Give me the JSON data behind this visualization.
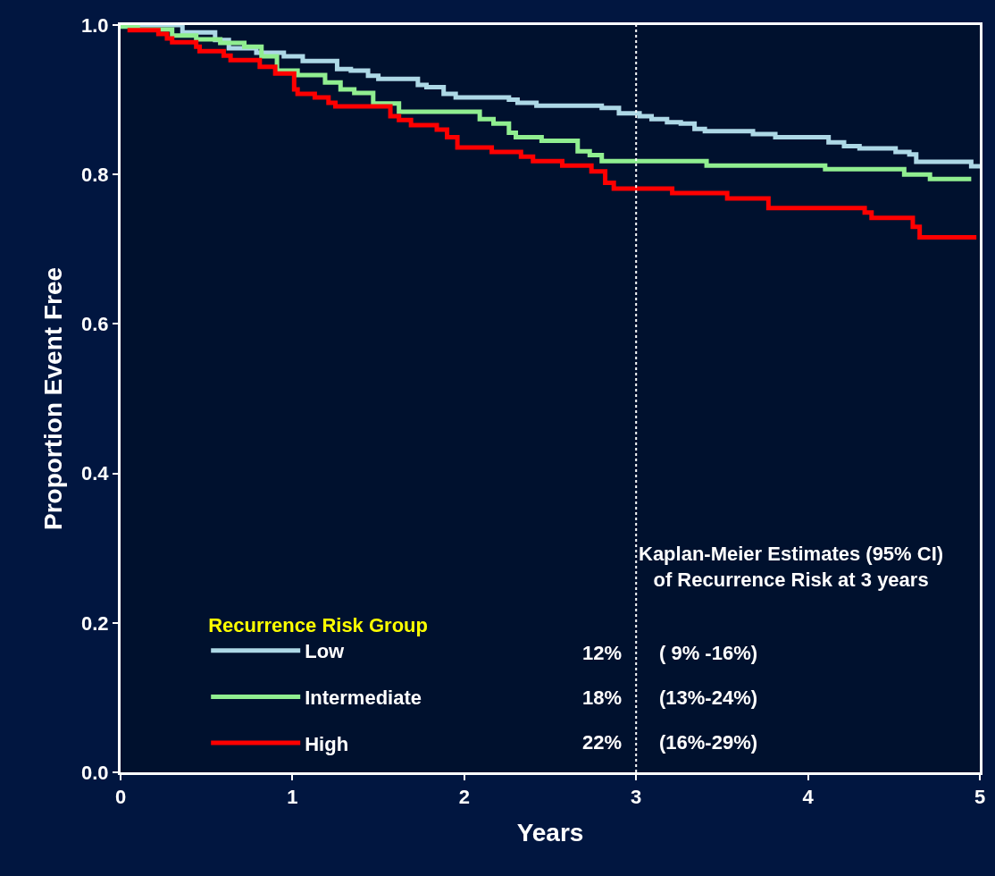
{
  "chart_data": {
    "type": "step",
    "xlabel": "Years",
    "ylabel": "Proportion Event Free",
    "legend_title": "Recurrence Risk Group",
    "legend": "bottom left",
    "grid": false,
    "marker": "none",
    "line_style": "solid",
    "xlim": [
      0,
      5
    ],
    "xticks": [
      0,
      1,
      2,
      3,
      4,
      5
    ],
    "ylim": [
      0,
      1
    ],
    "yticks": [
      {
        "value": 0,
        "label": "0.0"
      },
      0.2,
      0.4,
      0.6,
      0.8,
      {
        "value": 1,
        "label": "1.0"
      }
    ],
    "ref_lines": [
      {
        "axis": "x",
        "value": 3,
        "color": "#ffffff",
        "line_style": "dotted"
      }
    ],
    "annotations": [
      "Kaplan-Meier Estimates (95% CI)\nof Recurrence Risk at 3 years",
      "12%",
      "( 9% -16%)",
      "18%",
      "(13%-24%)",
      "22%",
      "(16%-29%)"
    ],
    "series": [
      {
        "name": "Low",
        "color": "#add8e6",
        "x": [
          0,
          0.36,
          0.55,
          0.63,
          0.79,
          0.95,
          1.06,
          1.26,
          1.34,
          1.44,
          1.5,
          1.73,
          1.78,
          1.88,
          1.95,
          2.26,
          2.31,
          2.42,
          2.8,
          2.9,
          3.02,
          3.09,
          3.18,
          3.26,
          3.34,
          3.4,
          3.68,
          3.81,
          4.12,
          4.21,
          4.3,
          4.51,
          4.59,
          4.63,
          4.95,
          5.0
        ],
        "values": [
          1.0,
          0.99,
          0.98,
          0.969,
          0.963,
          0.958,
          0.952,
          0.941,
          0.939,
          0.932,
          0.928,
          0.92,
          0.917,
          0.908,
          0.903,
          0.9,
          0.896,
          0.892,
          0.889,
          0.882,
          0.878,
          0.874,
          0.87,
          0.868,
          0.861,
          0.858,
          0.854,
          0.85,
          0.843,
          0.838,
          0.835,
          0.83,
          0.827,
          0.817,
          0.811,
          0.811
        ]
      },
      {
        "name": "Intermediate",
        "color": "#90ee90",
        "x": [
          0,
          0.1,
          0.3,
          0.44,
          0.58,
          0.72,
          0.82,
          0.91,
          1.03,
          1.19,
          1.28,
          1.36,
          1.47,
          1.62,
          2.09,
          2.17,
          2.26,
          2.3,
          2.45,
          2.66,
          2.73,
          2.8,
          3.41,
          4.1,
          4.56,
          4.71,
          4.95
        ],
        "values": [
          0.998,
          0.994,
          0.986,
          0.981,
          0.976,
          0.971,
          0.958,
          0.939,
          0.933,
          0.923,
          0.914,
          0.909,
          0.895,
          0.884,
          0.874,
          0.868,
          0.856,
          0.85,
          0.845,
          0.831,
          0.826,
          0.818,
          0.812,
          0.807,
          0.8,
          0.794,
          0.794
        ]
      },
      {
        "name": "High",
        "color": "#ff0000",
        "x": [
          0.04,
          0.22,
          0.27,
          0.3,
          0.44,
          0.46,
          0.6,
          0.64,
          0.81,
          0.9,
          1.01,
          1.03,
          1.13,
          1.21,
          1.25,
          1.57,
          1.62,
          1.69,
          1.84,
          1.9,
          1.96,
          2.16,
          2.33,
          2.4,
          2.57,
          2.74,
          2.82,
          2.87,
          3.21,
          3.53,
          3.77,
          4.33,
          4.37,
          4.61,
          4.65,
          4.98
        ],
        "values": [
          0.993,
          0.988,
          0.982,
          0.977,
          0.971,
          0.965,
          0.959,
          0.953,
          0.944,
          0.935,
          0.914,
          0.908,
          0.903,
          0.896,
          0.891,
          0.878,
          0.873,
          0.866,
          0.86,
          0.85,
          0.836,
          0.83,
          0.824,
          0.818,
          0.812,
          0.804,
          0.789,
          0.781,
          0.775,
          0.768,
          0.755,
          0.749,
          0.742,
          0.73,
          0.716,
          0.716
        ]
      }
    ]
  }
}
